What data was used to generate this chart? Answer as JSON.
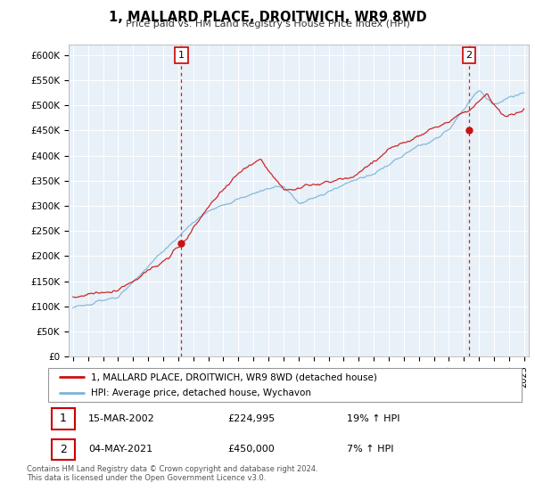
{
  "title": "1, MALLARD PLACE, DROITWICH, WR9 8WD",
  "subtitle": "Price paid vs. HM Land Registry's House Price Index (HPI)",
  "legend_line1": "1, MALLARD PLACE, DROITWICH, WR9 8WD (detached house)",
  "legend_line2": "HPI: Average price, detached house, Wychavon",
  "annotation1_date": "15-MAR-2002",
  "annotation1_price": "£224,995",
  "annotation1_hpi": "19% ↑ HPI",
  "annotation2_date": "04-MAY-2021",
  "annotation2_price": "£450,000",
  "annotation2_hpi": "7% ↑ HPI",
  "footer": "Contains HM Land Registry data © Crown copyright and database right 2024.\nThis data is licensed under the Open Government Licence v3.0.",
  "hpi_color": "#7ab4d8",
  "price_color": "#cc1111",
  "annotation_color": "#cc0000",
  "plot_bg_color": "#e8f0f8",
  "ylim": [
    0,
    620000
  ],
  "yticks": [
    0,
    50000,
    100000,
    150000,
    200000,
    250000,
    300000,
    350000,
    400000,
    450000,
    500000,
    550000,
    600000
  ],
  "ytick_labels": [
    "£0",
    "£50K",
    "£100K",
    "£150K",
    "£200K",
    "£250K",
    "£300K",
    "£350K",
    "£400K",
    "£450K",
    "£500K",
    "£550K",
    "£600K"
  ],
  "sale1_x": 2002.21,
  "sale1_y": 224995,
  "sale2_x": 2021.34,
  "sale2_y": 450000,
  "xmin": 1994.7,
  "xmax": 2025.3,
  "n_points": 360,
  "hpi_seed": 101,
  "prop_seed": 202
}
